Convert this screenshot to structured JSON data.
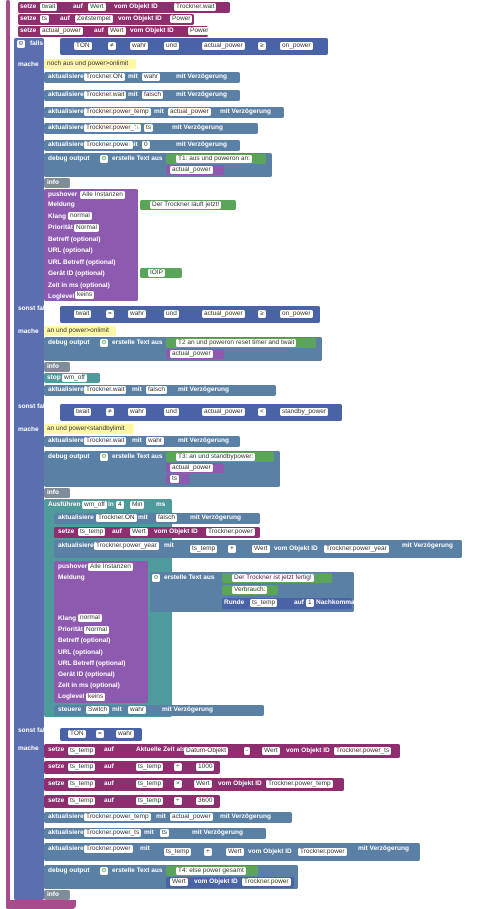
{
  "rows": [
    {
      "set_label": "setze",
      "var": "twait",
      "on": "auf",
      "val": "Wert",
      "from": "vom Objekt ID",
      "obj": "Trockner.wait"
    },
    {
      "set_label": "setze",
      "var": "ts",
      "on": "auf",
      "val": "Zeitstempel",
      "from": "vom Objekt ID",
      "obj": "Power"
    },
    {
      "set_label": "setze",
      "var": "actual_power",
      "on": "auf",
      "val": "Wert",
      "from": "vom Objekt ID",
      "obj": "Power"
    }
  ],
  "if1": {
    "label": "falls",
    "var": "TON",
    "op": "≠",
    "val": "wahr",
    "and": "und",
    "var2": "actual_power",
    "op2": "≥",
    "val2": "on_power"
  },
  "macht_label": "mache",
  "comment1": "noch aus und power>onlimit",
  "actions1": [
    {
      "label": "aktualisiere",
      "obj": "Trockner.ON",
      "with": "mit",
      "val": "wahr",
      "delay": "mit Verzögerung"
    },
    {
      "label": "aktualisiere",
      "obj": "Trockner.wait",
      "with": "mit",
      "val": "falsch",
      "delay": "mit Verzögerung"
    },
    {
      "label": "aktualisiere",
      "obj": "Trockner.power_temp",
      "with": "mit",
      "val": "actual_power",
      "delay": "mit Verzögerung"
    },
    {
      "label": "aktualisiere",
      "obj": "Trockner.power_ts",
      "with": "mit",
      "val": "ts",
      "delay": "mit Verzögerung"
    },
    {
      "label": "aktualisiere",
      "obj": "Trockner.power",
      "with": "mit",
      "val": "0",
      "delay": "mit Verzögerung"
    }
  ],
  "debug1": {
    "label": "debug output",
    "text": "erstelle Text aus",
    "s1": "T1: aus und poweron an: ",
    "s2": "actual_power"
  },
  "info": "info",
  "pushover": {
    "label": "pushover",
    "target": "Alle Instanzen",
    "fields": [
      "Meldung",
      "Klang",
      "Priorität",
      "Betreff (optional)",
      "URL (optional)",
      "URL Betreff (optional)",
      "Gerät ID (optional)",
      "Zeit in ms (optional)",
      "Loglevel"
    ],
    "msg": "Der Trockner läuft jetzt!",
    "sound": "normal",
    "prio": "Normal",
    "device": "IOIP",
    "loglevel": "keins"
  },
  "if2": {
    "label": "sonst falls",
    "var": "twait",
    "op": "=",
    "val": "wahr",
    "and": "und",
    "var2": "actual_power",
    "op2": "≥",
    "val2": "on_power"
  },
  "comment2": "an und power>onlimit",
  "debug2": {
    "label": "debug output",
    "text": "erstelle Text aus",
    "s1": "T2 an und poweron reset timer and twait ",
    "s2": "actual_power"
  },
  "stop": {
    "label": "stop",
    "val": "wm_off"
  },
  "act2": {
    "label": "aktualisiere",
    "obj": "Trockner.wait",
    "with": "mit",
    "val": "falsch",
    "delay": "mit Verzögerung"
  },
  "if3": {
    "label": "sonst falls",
    "var": "twait",
    "op": "≠",
    "val": "wahr",
    "and": "und",
    "var2": "actual_power",
    "op2": "<",
    "val2": "standby_power"
  },
  "comment3": "an und power<standbylimit",
  "act3": {
    "label": "aktualisiere",
    "obj": "Trockner.wait",
    "with": "mit",
    "val": "wahr",
    "delay": "mit Verzögerung"
  },
  "debug3": {
    "label": "debug output",
    "text": "erstelle Text aus",
    "s1": "T3: an und standbypower: ",
    "s2": "actual_power",
    "s3": "ts"
  },
  "timer": {
    "label": "Ausführen",
    "var": "wm_off",
    "in": "in",
    "num": "4",
    "unit": "Min",
    "ms": "ms"
  },
  "timer_acts": [
    {
      "label": "aktualisiere",
      "obj": "Trockner.ON",
      "with": "mit",
      "val": "falsch",
      "delay": "mit Verzögerung"
    }
  ],
  "set_in_timer": {
    "label": "setze",
    "var": "ts_temp",
    "on": "auf",
    "val": "Wert",
    "from": "vom Objekt ID",
    "obj": "Trockner.power"
  },
  "power_year": {
    "label": "aktualisiere",
    "obj": "Trockner.power_year",
    "with": "mit",
    "v1": "ts_temp",
    "op": "+",
    "val": "Wert",
    "from": "vom Objekt ID",
    "obj2": "Trockner.power_year",
    "delay": "mit Verzögerung"
  },
  "push2": {
    "label": "pushover",
    "target": "Alle Instanzen",
    "msg_label": "Meldung",
    "text": "erstelle Text aus",
    "s1": "Der Trockner ist jetzt fertig!",
    "s2": "Verbrauch: ",
    "round": "Runde",
    "rvar": "ts_temp",
    "auf": "auf",
    "places": "1",
    "after": "Nachkommastellen",
    "fields": [
      "Klang",
      "Priorität",
      "Betreff (optional)",
      "URL (optional)",
      "URL Betreff (optional)",
      "Gerät ID (optional)",
      "Zeit in ms (optional)",
      "Loglevel"
    ],
    "sound": "normal",
    "prio": "Normal",
    "loglevel": "keins"
  },
  "steuere": {
    "label": "steuere",
    "obj": "Switch",
    "with": "mit",
    "val": "wahr",
    "delay": "mit Verzögerung"
  },
  "if4": {
    "label": "sonst falls",
    "var": "TON",
    "op": "=",
    "val": "wahr"
  },
  "final_sets": [
    {
      "label": "setze",
      "var": "ts_temp",
      "on": "auf",
      "extra": "Aktuelle Zeit als",
      "fmt": "Datum-Objekt",
      "minus": "-",
      "val": "Wert",
      "from": "vom Objekt ID",
      "obj": "Trockner.power_ts"
    },
    {
      "label": "setze",
      "var": "ts_temp",
      "on": "auf",
      "v1": "ts_temp",
      "op": "÷",
      "num": "1000"
    },
    {
      "label": "setze",
      "var": "ts_temp",
      "on": "auf",
      "v1": "ts_temp",
      "op": "×",
      "val": "Wert",
      "from": "vom Objekt ID",
      "obj": "Trockner.power_temp"
    },
    {
      "label": "setze",
      "var": "ts_temp",
      "on": "auf",
      "v1": "ts_temp",
      "op": "÷",
      "num": "3600"
    }
  ],
  "final_acts": [
    {
      "label": "aktualisiere",
      "obj": "Trockner.power_temp",
      "with": "mit",
      "val": "actual_power",
      "delay": "mit Verzögerung"
    },
    {
      "label": "aktualisiere",
      "obj": "Trockner.power_ts",
      "with": "mit",
      "val": "ts",
      "delay": "mit Verzögerung"
    }
  ],
  "final_power": {
    "label": "aktualisiere",
    "obj": "Trockner.power",
    "with": "mit",
    "v1": "ts_temp",
    "op": "+",
    "val": "Wert",
    "from": "vom Objekt ID",
    "obj2": "Trockner.power",
    "delay": "mit Verzögerung"
  },
  "debug4": {
    "label": "debug output",
    "text": "erstelle Text aus",
    "s1": "T4: else power gesamt",
    "val": "Wert",
    "from": "vom Objekt ID",
    "obj": "Trockner.power"
  }
}
